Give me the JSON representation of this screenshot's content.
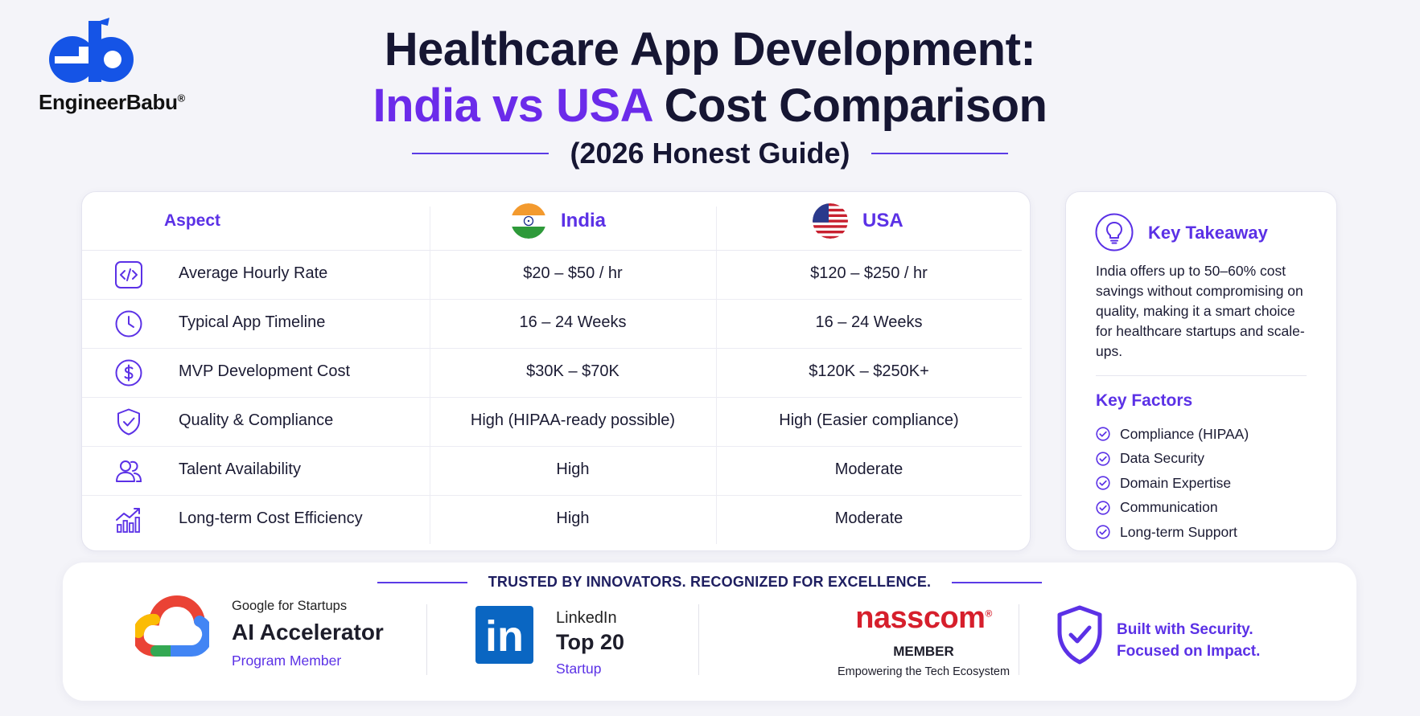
{
  "brand": {
    "name": "EngineerBabu",
    "reg": "®",
    "mark_text": "eb"
  },
  "header": {
    "title_line1": "Healthcare App Development:",
    "title_accent": "India vs USA",
    "title_rest": "Cost Comparison",
    "subtitle": "(2026 Honest Guide)"
  },
  "table": {
    "aspect_header": "Aspect",
    "india_header": "India",
    "usa_header": "USA",
    "rows": [
      {
        "icon": "code-icon",
        "aspect": "Average Hourly Rate",
        "india": "$20 – $50 / hr",
        "usa": "$120 – $250 / hr"
      },
      {
        "icon": "clock-icon",
        "aspect": "Typical App Timeline",
        "india": "16 – 24 Weeks",
        "usa": "16 – 24 Weeks"
      },
      {
        "icon": "dollar-icon",
        "aspect": "MVP Development Cost",
        "india": "$30K – $70K",
        "usa": "$120K – $250K+"
      },
      {
        "icon": "shield-check-icon",
        "aspect": "Quality & Compliance",
        "india": "High (HIPAA-ready possible)",
        "usa": "High (Easier compliance)"
      },
      {
        "icon": "users-icon",
        "aspect": "Talent Availability",
        "india": "High",
        "usa": "Moderate"
      },
      {
        "icon": "growth-chart-icon",
        "aspect": "Long-term Cost Efficiency",
        "india": "High",
        "usa": "Moderate"
      }
    ]
  },
  "sidebar": {
    "takeaway_title": "Key Takeaway",
    "takeaway_text": "India offers up to 50–60% cost savings without compromising on quality, making it a smart choice for healthcare startups and scale-ups.",
    "factors_title": "Key Factors",
    "factors": [
      "Compliance (HIPAA)",
      "Data Security",
      "Domain Expertise",
      "Communication",
      "Long-term Support"
    ]
  },
  "footer": {
    "trusted": "TRUSTED BY INNOVATORS. RECOGNIZED FOR EXCELLENCE.",
    "google": {
      "top": "Google for Startups",
      "main": "AI Accelerator",
      "sub": "Program Member"
    },
    "linkedin": {
      "logo_text": "in",
      "top": "LinkedIn",
      "main": "Top 20",
      "sub": "Startup"
    },
    "nasscom": {
      "logo": "nasscom",
      "reg": "®",
      "member": "MEMBER",
      "tagline": "Empowering the Tech Ecosystem"
    },
    "security": {
      "line1": "Built with Security.",
      "line2": "Focused on Impact."
    }
  },
  "colors": {
    "accent": "#5b31e6",
    "title_accent": "#6b2bea",
    "brand_blue": "#1554e6",
    "nasscom_red": "#d61f2c",
    "linkedin_blue": "#0a66c2"
  }
}
